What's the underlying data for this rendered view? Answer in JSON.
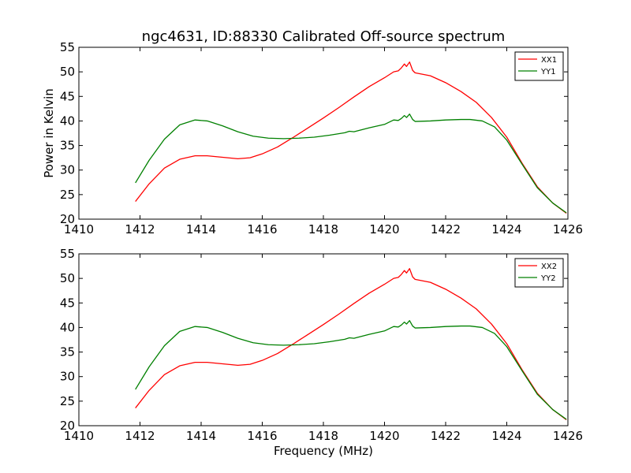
{
  "chart_data": {
    "type": "line",
    "title": "ngc4631, ID:88330 Calibrated Off-source spectrum",
    "xlabel": "Frequency (MHz)",
    "ylabel": "Power in Kelvin",
    "panels": [
      {
        "xlim": [
          1410,
          1426
        ],
        "ylim": [
          20,
          55
        ],
        "xticks": [
          1410,
          1412,
          1414,
          1416,
          1418,
          1420,
          1422,
          1424,
          1426
        ],
        "yticks": [
          20,
          25,
          30,
          35,
          40,
          45,
          50,
          55
        ],
        "legend_position": "top-right",
        "series": [
          {
            "name": "XX1",
            "color": "#ff0000",
            "points": [
              [
                1411.85,
                23.6
              ],
              [
                1412.3,
                27.2
              ],
              [
                1412.8,
                30.4
              ],
              [
                1413.3,
                32.2
              ],
              [
                1413.8,
                32.9
              ],
              [
                1414.2,
                32.9
              ],
              [
                1414.7,
                32.6
              ],
              [
                1415.2,
                32.3
              ],
              [
                1415.6,
                32.5
              ],
              [
                1416.0,
                33.3
              ],
              [
                1416.5,
                34.7
              ],
              [
                1417.0,
                36.6
              ],
              [
                1417.5,
                38.6
              ],
              [
                1418.0,
                40.6
              ],
              [
                1418.5,
                42.7
              ],
              [
                1419.0,
                44.9
              ],
              [
                1419.5,
                47.0
              ],
              [
                1420.0,
                48.8
              ],
              [
                1420.3,
                50.0
              ],
              [
                1420.45,
                50.2
              ],
              [
                1420.55,
                50.8
              ],
              [
                1420.65,
                51.6
              ],
              [
                1420.72,
                51.1
              ],
              [
                1420.82,
                52.0
              ],
              [
                1420.92,
                50.3
              ],
              [
                1421.0,
                49.8
              ],
              [
                1421.5,
                49.2
              ],
              [
                1422.0,
                47.8
              ],
              [
                1422.5,
                46.0
              ],
              [
                1423.0,
                43.8
              ],
              [
                1423.5,
                40.7
              ],
              [
                1424.0,
                36.7
              ],
              [
                1424.5,
                31.4
              ],
              [
                1425.0,
                26.6
              ],
              [
                1425.5,
                23.3
              ],
              [
                1425.95,
                21.2
              ]
            ]
          },
          {
            "name": "YY1",
            "color": "#008000",
            "points": [
              [
                1411.85,
                27.4
              ],
              [
                1412.3,
                32.0
              ],
              [
                1412.8,
                36.3
              ],
              [
                1413.3,
                39.2
              ],
              [
                1413.8,
                40.2
              ],
              [
                1414.2,
                40.0
              ],
              [
                1414.7,
                39.0
              ],
              [
                1415.2,
                37.8
              ],
              [
                1415.7,
                36.9
              ],
              [
                1416.2,
                36.5
              ],
              [
                1416.7,
                36.4
              ],
              [
                1417.2,
                36.5
              ],
              [
                1417.7,
                36.7
              ],
              [
                1418.2,
                37.1
              ],
              [
                1418.7,
                37.6
              ],
              [
                1418.85,
                37.9
              ],
              [
                1419.0,
                37.8
              ],
              [
                1419.5,
                38.6
              ],
              [
                1420.0,
                39.3
              ],
              [
                1420.3,
                40.2
              ],
              [
                1420.45,
                40.1
              ],
              [
                1420.55,
                40.5
              ],
              [
                1420.65,
                41.1
              ],
              [
                1420.72,
                40.7
              ],
              [
                1420.82,
                41.4
              ],
              [
                1420.92,
                40.3
              ],
              [
                1421.0,
                39.9
              ],
              [
                1421.5,
                40.0
              ],
              [
                1422.0,
                40.2
              ],
              [
                1422.5,
                40.3
              ],
              [
                1422.8,
                40.3
              ],
              [
                1423.2,
                40.0
              ],
              [
                1423.6,
                38.8
              ],
              [
                1424.0,
                36.1
              ],
              [
                1424.5,
                31.2
              ],
              [
                1425.0,
                26.4
              ],
              [
                1425.5,
                23.3
              ],
              [
                1425.95,
                21.3
              ]
            ]
          }
        ]
      },
      {
        "xlim": [
          1410,
          1426
        ],
        "ylim": [
          20,
          55
        ],
        "xticks": [
          1410,
          1412,
          1414,
          1416,
          1418,
          1420,
          1422,
          1424,
          1426
        ],
        "yticks": [
          20,
          25,
          30,
          35,
          40,
          45,
          50,
          55
        ],
        "legend_position": "top-right",
        "series": [
          {
            "name": "XX2",
            "color": "#ff0000",
            "points": [
              [
                1411.85,
                23.6
              ],
              [
                1412.3,
                27.2
              ],
              [
                1412.8,
                30.4
              ],
              [
                1413.3,
                32.2
              ],
              [
                1413.8,
                32.9
              ],
              [
                1414.2,
                32.9
              ],
              [
                1414.7,
                32.6
              ],
              [
                1415.2,
                32.3
              ],
              [
                1415.6,
                32.5
              ],
              [
                1416.0,
                33.3
              ],
              [
                1416.5,
                34.7
              ],
              [
                1417.0,
                36.6
              ],
              [
                1417.5,
                38.6
              ],
              [
                1418.0,
                40.6
              ],
              [
                1418.5,
                42.7
              ],
              [
                1419.0,
                44.9
              ],
              [
                1419.5,
                47.0
              ],
              [
                1420.0,
                48.8
              ],
              [
                1420.3,
                50.0
              ],
              [
                1420.45,
                50.2
              ],
              [
                1420.55,
                50.8
              ],
              [
                1420.65,
                51.6
              ],
              [
                1420.72,
                51.1
              ],
              [
                1420.82,
                52.0
              ],
              [
                1420.92,
                50.3
              ],
              [
                1421.0,
                49.8
              ],
              [
                1421.5,
                49.2
              ],
              [
                1422.0,
                47.8
              ],
              [
                1422.5,
                46.0
              ],
              [
                1423.0,
                43.8
              ],
              [
                1423.5,
                40.7
              ],
              [
                1424.0,
                36.7
              ],
              [
                1424.5,
                31.4
              ],
              [
                1425.0,
                26.6
              ],
              [
                1425.5,
                23.3
              ],
              [
                1425.95,
                21.2
              ]
            ]
          },
          {
            "name": "YY2",
            "color": "#008000",
            "points": [
              [
                1411.85,
                27.4
              ],
              [
                1412.3,
                32.0
              ],
              [
                1412.8,
                36.3
              ],
              [
                1413.3,
                39.2
              ],
              [
                1413.8,
                40.2
              ],
              [
                1414.2,
                40.0
              ],
              [
                1414.7,
                39.0
              ],
              [
                1415.2,
                37.8
              ],
              [
                1415.7,
                36.9
              ],
              [
                1416.2,
                36.5
              ],
              [
                1416.7,
                36.4
              ],
              [
                1417.2,
                36.5
              ],
              [
                1417.7,
                36.7
              ],
              [
                1418.2,
                37.1
              ],
              [
                1418.7,
                37.6
              ],
              [
                1418.85,
                37.9
              ],
              [
                1419.0,
                37.8
              ],
              [
                1419.5,
                38.6
              ],
              [
                1420.0,
                39.3
              ],
              [
                1420.3,
                40.2
              ],
              [
                1420.45,
                40.1
              ],
              [
                1420.55,
                40.5
              ],
              [
                1420.65,
                41.1
              ],
              [
                1420.72,
                40.7
              ],
              [
                1420.82,
                41.4
              ],
              [
                1420.92,
                40.3
              ],
              [
                1421.0,
                39.9
              ],
              [
                1421.5,
                40.0
              ],
              [
                1422.0,
                40.2
              ],
              [
                1422.5,
                40.3
              ],
              [
                1422.8,
                40.3
              ],
              [
                1423.2,
                40.0
              ],
              [
                1423.6,
                38.8
              ],
              [
                1424.0,
                36.1
              ],
              [
                1424.5,
                31.2
              ],
              [
                1425.0,
                26.4
              ],
              [
                1425.5,
                23.3
              ],
              [
                1425.95,
                21.3
              ]
            ]
          }
        ]
      }
    ]
  }
}
